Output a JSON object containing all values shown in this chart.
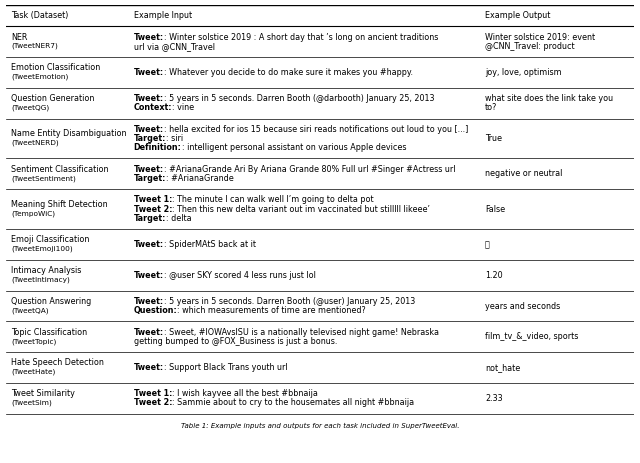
{
  "caption": "Table 1: Example inputs and outputs for each task included in SuperTweetEval.",
  "header": [
    "Task (Dataset)",
    "Example Input",
    "Example Output"
  ],
  "rows": [
    {
      "task_normal": "NER",
      "task_small": "(TweetNER7)",
      "input_parts": [
        {
          "bold": "Tweet",
          "rest": ": Winter solstice 2019 : A short day that ’s long on ancient traditions\nurl via @CNN_Travel"
        }
      ],
      "output": "Winter solstice 2019: event\n@CNN_Travel: product"
    },
    {
      "task_normal": "Emotion Classification",
      "task_small": "(TweetEmotion)",
      "input_parts": [
        {
          "bold": "Tweet",
          "rest": ": Whatever you decide to do make sure it makes you #happy."
        }
      ],
      "output": "joy, love, optimism"
    },
    {
      "task_normal": "Question Generation",
      "task_small": "(TweetQG)",
      "input_parts": [
        {
          "bold": "Tweet",
          "rest": ": 5 years in 5 seconds. Darren Booth (@darbooth) January 25, 2013"
        },
        {
          "bold": "Context",
          "rest": ": vine"
        }
      ],
      "output": "what site does the link take you\nto?"
    },
    {
      "task_normal": "Name Entity Disambiguation",
      "task_small": "(TweetNERD)",
      "input_parts": [
        {
          "bold": "Tweet",
          "rest": ": hella excited for ios 15 because siri reads notifications out loud to you [...]"
        },
        {
          "bold": "Target",
          "rest": ": siri"
        },
        {
          "bold": "Definition",
          "rest": ": intelligent personal assistant on various Apple devices"
        }
      ],
      "output": "True"
    },
    {
      "task_normal": "Sentiment Classification",
      "task_small": "(TweetSentiment)",
      "input_parts": [
        {
          "bold": "Tweet",
          "rest": ": #ArianaGrande Ari By Ariana Grande 80% Full url #Singer #Actress url"
        },
        {
          "bold": "Target",
          "rest": ": #ArianaGrande"
        }
      ],
      "output": "negative or neutral"
    },
    {
      "task_normal": "Meaning Shift Detection",
      "task_small": "(TempoWiC)",
      "input_parts": [
        {
          "bold": "Tweet 1",
          "rest": ": The minute I can walk well I’m going to delta pot"
        },
        {
          "bold": "Tweet 2",
          "rest": ": Then this new delta variant out im vaccinated but stilllll likeee’"
        },
        {
          "bold": "Target",
          "rest": ": delta"
        }
      ],
      "output": "False"
    },
    {
      "task_normal": "Emoji Classification",
      "task_small": "(TweetEmoji100)",
      "input_parts": [
        {
          "bold": "Tweet",
          "rest": ": SpiderMAtS back at it"
        }
      ],
      "output": "🔥"
    },
    {
      "task_normal": "Intimacy Analysis",
      "task_small": "(TweetIntimacy)",
      "input_parts": [
        {
          "bold": "Tweet",
          "rest": ": @user SKY scored 4 less runs just lol"
        }
      ],
      "output": "1.20"
    },
    {
      "task_normal": "Question Answering",
      "task_small": "(TweetQA)",
      "input_parts": [
        {
          "bold": "Tweet",
          "rest": ": 5 years in 5 seconds. Darren Booth (@user) January 25, 2013"
        },
        {
          "bold": "Question",
          "rest": ": which measurements of time are mentioned?"
        }
      ],
      "output": "years and seconds"
    },
    {
      "task_normal": "Topic Classification",
      "task_small": "(TweetTopic)",
      "input_parts": [
        {
          "bold": "Tweet",
          "rest": ": Sweet, #IOWAvsISU is a nationally televised night game! Nebraska\ngetting bumped to @FOX_Business is just a bonus."
        }
      ],
      "output": "film_tv_&_video, sports"
    },
    {
      "task_normal": "Hate Speech Detection",
      "task_small": "(TweetHate)",
      "input_parts": [
        {
          "bold": "Tweet",
          "rest": ": Support Black Trans youth url"
        }
      ],
      "output": "not_hate"
    },
    {
      "task_normal": "Tweet Similarity",
      "task_small": "(TweetSim)",
      "input_parts": [
        {
          "bold": "Tweet 1",
          "rest": ": I wish kayvee all the best #bbnaija"
        },
        {
          "bold": "Tweet 2",
          "rest": ": Sammie about to cry to the housemates all night #bbnaija"
        }
      ],
      "output": "2.33"
    }
  ],
  "fig_width": 6.4,
  "fig_height": 4.63,
  "font_size": 5.8,
  "bg_color": "#ffffff"
}
